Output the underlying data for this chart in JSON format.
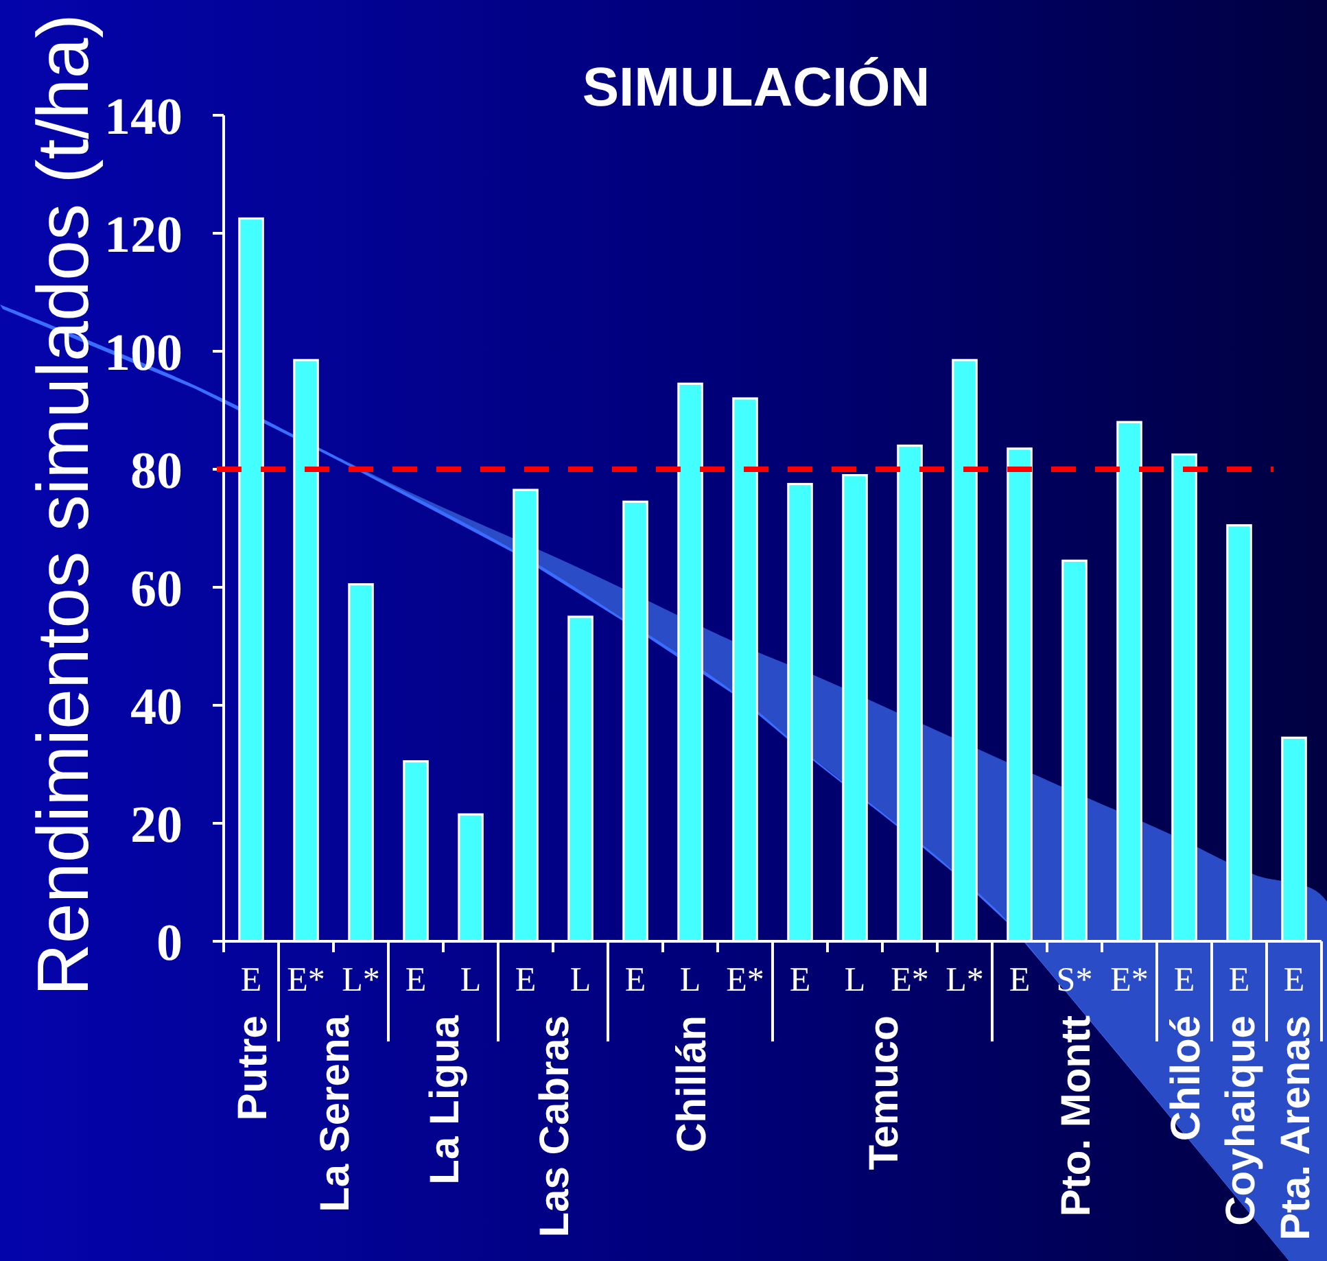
{
  "chart_data": {
    "type": "bar",
    "title": "SIMULACIÓN",
    "ylabel": "Rendimientos simulados (t/ha)",
    "categories": [
      "Putre",
      "La Serena",
      "La Ligua",
      "Las Cabras",
      "Chillán",
      "Temuco",
      "Pto. Montt",
      "Chiloé",
      "Coyhaique",
      "Pta. Arenas"
    ],
    "series": [
      {
        "name": "E",
        "color": "#44ffff",
        "values": [
          122.5,
          null,
          30.5,
          76.5,
          74.5,
          77.5,
          83.5,
          82.5,
          70.5,
          34.5
        ]
      },
      {
        "name": "L",
        "color": "#44ffff",
        "values": [
          null,
          null,
          21.5,
          55,
          94.5,
          79,
          null,
          null,
          null,
          null
        ]
      },
      {
        "name": "S*",
        "color": "#44ffff",
        "values": [
          null,
          null,
          null,
          null,
          null,
          null,
          64.5,
          null,
          null,
          null
        ]
      },
      {
        "name": "E*",
        "color": "#44ffff",
        "values": [
          null,
          98.5,
          null,
          null,
          92,
          84,
          88,
          null,
          null,
          null
        ]
      },
      {
        "name": "L*",
        "color": "#44ffff",
        "values": [
          null,
          60.5,
          null,
          null,
          null,
          98.5,
          null,
          null,
          null,
          null
        ]
      }
    ],
    "ylim": [
      0,
      140
    ],
    "yticks": [
      0,
      20,
      40,
      60,
      80,
      100,
      120,
      140
    ],
    "ref_lines": [
      {
        "axis": "y",
        "value": 80,
        "color": "#ff0000",
        "line_style": "dashed"
      }
    ]
  }
}
